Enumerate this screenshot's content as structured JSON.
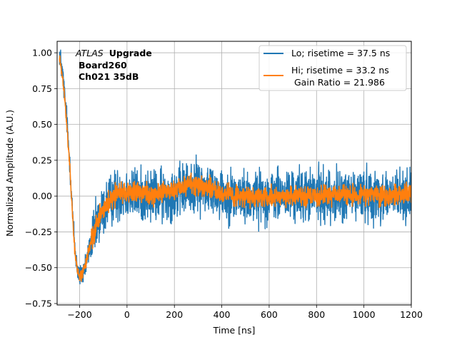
{
  "chart_data": {
    "type": "line",
    "title": "",
    "xlabel": "Time [ns]",
    "ylabel": "Normalized Amplitude (A.U.)",
    "xlim": [
      -295,
      1200
    ],
    "ylim": [
      -0.76,
      1.08
    ],
    "xticks": [
      -200,
      0,
      200,
      400,
      600,
      800,
      1000,
      1200
    ],
    "yticks": [
      -0.75,
      -0.5,
      -0.25,
      0.0,
      0.25,
      0.5,
      0.75,
      1.0
    ],
    "xtick_labels": [
      "−200",
      "0",
      "200",
      "400",
      "600",
      "800",
      "1000",
      "1200"
    ],
    "ytick_labels": [
      "−0.75",
      "−0.50",
      "−0.25",
      "0.00",
      "0.25",
      "0.50",
      "0.75",
      "1.00"
    ],
    "grid": true,
    "legend_position": "upper-right",
    "annotation": {
      "line1_italic": "ATLAS",
      "line1_bold": "Upgrade",
      "line2": "Board260",
      "line3": "Ch021 35dB"
    },
    "series": [
      {
        "name": "Lo; risetime = 37.5 ns",
        "color": "#1f77b4",
        "noise": 0.09,
        "x": [
          -285,
          -270,
          -255,
          -240,
          -230,
          -220,
          -210,
          -200,
          -190,
          -180,
          -170,
          -160,
          -140,
          -120,
          -100,
          -80,
          -60,
          -40,
          -20,
          0,
          50,
          100,
          150,
          200,
          250,
          300,
          350,
          400,
          450,
          500,
          600,
          700,
          800,
          900,
          1000,
          1100,
          1200
        ],
        "values": [
          1.0,
          0.82,
          0.55,
          0.2,
          -0.12,
          -0.36,
          -0.5,
          -0.56,
          -0.55,
          -0.5,
          -0.45,
          -0.38,
          -0.27,
          -0.18,
          -0.1,
          -0.05,
          -0.01,
          0.01,
          0.02,
          0.02,
          0.01,
          0.0,
          0.0,
          0.02,
          0.05,
          0.07,
          0.05,
          0.02,
          0.0,
          -0.01,
          0.0,
          0.0,
          0.01,
          0.0,
          0.01,
          0.0,
          0.0
        ]
      },
      {
        "name": "Hi; risetime = 33.2 ns",
        "extra_line": "Gain Ratio = 21.986",
        "color": "#ff7f0e",
        "noise": 0.035,
        "x": [
          -285,
          -270,
          -255,
          -240,
          -230,
          -220,
          -210,
          -200,
          -190,
          -180,
          -170,
          -160,
          -140,
          -120,
          -100,
          -80,
          -60,
          -40,
          -20,
          0,
          50,
          100,
          150,
          200,
          250,
          300,
          350,
          400,
          450,
          500,
          600,
          700,
          800,
          900,
          1000,
          1100,
          1200
        ],
        "values": [
          0.98,
          0.8,
          0.52,
          0.18,
          -0.14,
          -0.38,
          -0.52,
          -0.57,
          -0.55,
          -0.5,
          -0.44,
          -0.37,
          -0.26,
          -0.17,
          -0.09,
          -0.04,
          0.0,
          0.02,
          0.03,
          0.03,
          0.02,
          0.02,
          0.02,
          0.04,
          0.07,
          0.09,
          0.06,
          0.03,
          0.0,
          -0.01,
          0.0,
          0.0,
          0.0,
          0.01,
          0.01,
          0.01,
          0.01
        ]
      }
    ]
  }
}
